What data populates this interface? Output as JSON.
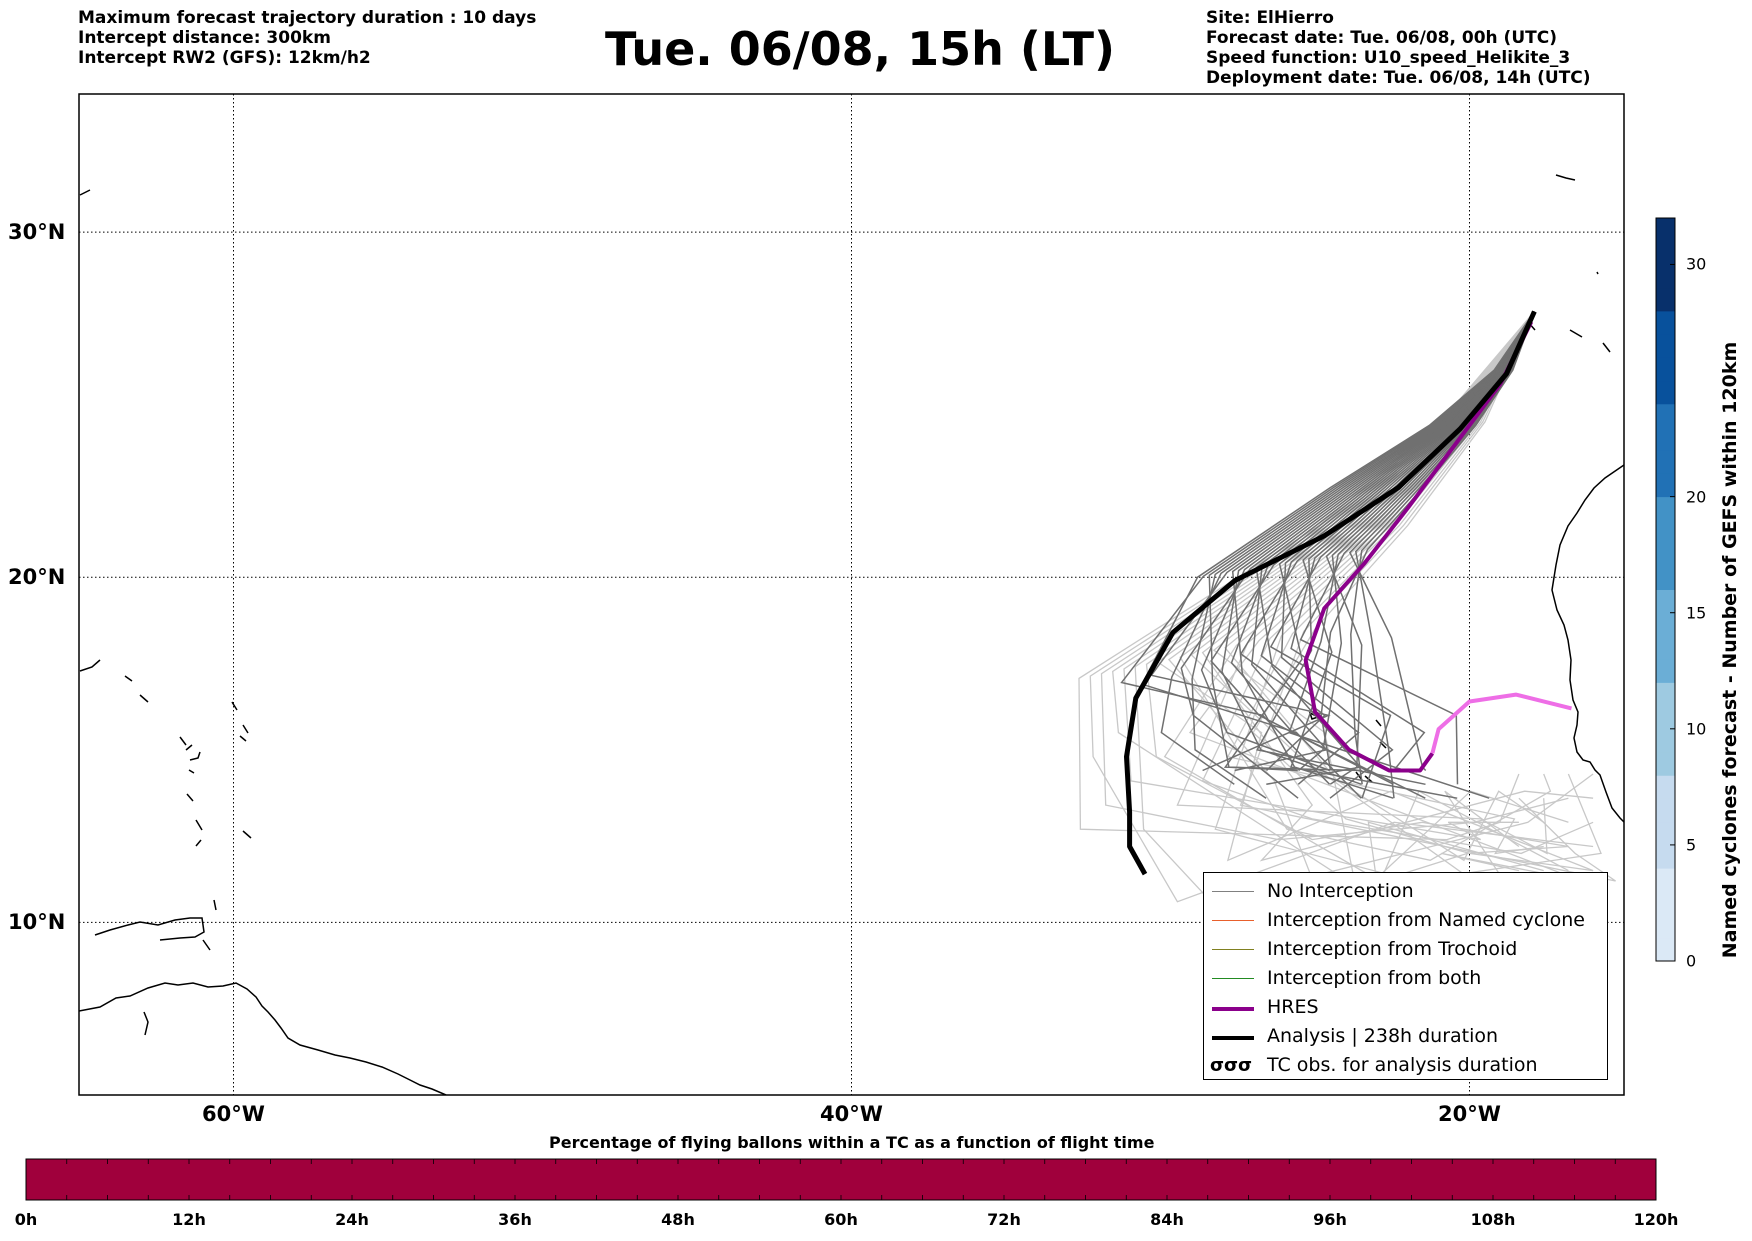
{
  "title": "Tue. 06/08, 15h (LT)",
  "header_left": [
    "Maximum forecast trajectory duration : 10 days",
    "Intercept distance: 300km",
    "Intercept RW2 (GFS):  12km/h2"
  ],
  "header_right": [
    "Site: ElHierro",
    "Forecast date: Tue. 06/08, 00h (UTC)",
    "Speed function: U10_speed_Helikite_3",
    "Deployment date: Tue. 06/08, 14h (UTC)"
  ],
  "map": {
    "lon_range": [
      -65,
      -15
    ],
    "lat_range": [
      5,
      34
    ],
    "lat_ticks": [
      {
        "value": 30,
        "label": "30°N"
      },
      {
        "value": 20,
        "label": "20°N"
      },
      {
        "value": 10,
        "label": "10°N"
      }
    ],
    "lon_ticks": [
      {
        "value": -60,
        "label": "60°W"
      },
      {
        "value": -40,
        "label": "40°W"
      },
      {
        "value": -20,
        "label": "20°W"
      }
    ],
    "grid": "dotted",
    "release_site": [
      -17.9,
      27.7
    ]
  },
  "legend": {
    "placement": "bottom-right",
    "items": [
      {
        "label": "No Interception",
        "color": "#808080",
        "style": "thin"
      },
      {
        "label": "Interception from Named cyclone",
        "color": "#e8602c",
        "style": "thin"
      },
      {
        "label": "Interception from Trochoid",
        "color": "#808020",
        "style": "thin"
      },
      {
        "label": "Interception from both",
        "color": "#228b22",
        "style": "thin"
      },
      {
        "label": "HRES",
        "color": "#8b008b",
        "style": "thick"
      },
      {
        "label": "Analysis | 238h duration",
        "color": "#000000",
        "style": "thick"
      },
      {
        "label": "TC obs. for analysis duration",
        "color": "#000000",
        "style": "symbol"
      }
    ]
  },
  "tracks": {
    "analysis": [
      [
        -17.9,
        27.7
      ],
      [
        -18.8,
        25.9
      ],
      [
        -20.3,
        24.3
      ],
      [
        -22.3,
        22.6
      ],
      [
        -24.7,
        21.2
      ],
      [
        -27.6,
        19.9
      ],
      [
        -29.6,
        18.4
      ],
      [
        -30.8,
        16.5
      ],
      [
        -31.1,
        14.8
      ],
      [
        -31.0,
        13.2
      ],
      [
        -31.0,
        12.2
      ],
      [
        -30.5,
        11.4
      ]
    ],
    "hres": [
      [
        -18.0,
        27.4
      ],
      [
        -19.0,
        25.6
      ],
      [
        -20.5,
        23.8
      ],
      [
        -22.0,
        22.0
      ],
      [
        -23.4,
        20.4
      ],
      [
        -24.7,
        19.1
      ],
      [
        -25.3,
        17.6
      ],
      [
        -25.0,
        16.1
      ],
      [
        -23.9,
        15.0
      ],
      [
        -22.6,
        14.4
      ],
      [
        -21.6,
        14.4
      ],
      [
        -21.2,
        14.9
      ]
    ],
    "hres_pink": [
      [
        -21.2,
        14.9
      ],
      [
        -21.0,
        15.6
      ],
      [
        -20.0,
        16.4
      ],
      [
        -18.5,
        16.6
      ],
      [
        -16.7,
        16.2
      ]
    ]
  },
  "colorbar_bottom": {
    "title": "Percentage of flying ballons within a TC as a function of flight time",
    "ticks": [
      "0h",
      "12h",
      "24h",
      "36h",
      "48h",
      "60h",
      "72h",
      "84h",
      "96h",
      "108h",
      "120h"
    ],
    "color": "#a0003c"
  },
  "colorbar_right": {
    "label": "Named cyclones forecast - Number of GEFS within 120km",
    "ticks": [
      0,
      5,
      10,
      15,
      20,
      30
    ],
    "range": [
      0,
      32
    ],
    "colors": [
      "#dbe9f6",
      "#c6dbef",
      "#9ecae1",
      "#6baed6",
      "#4292c6",
      "#2171b5",
      "#08519c",
      "#08306b"
    ]
  }
}
